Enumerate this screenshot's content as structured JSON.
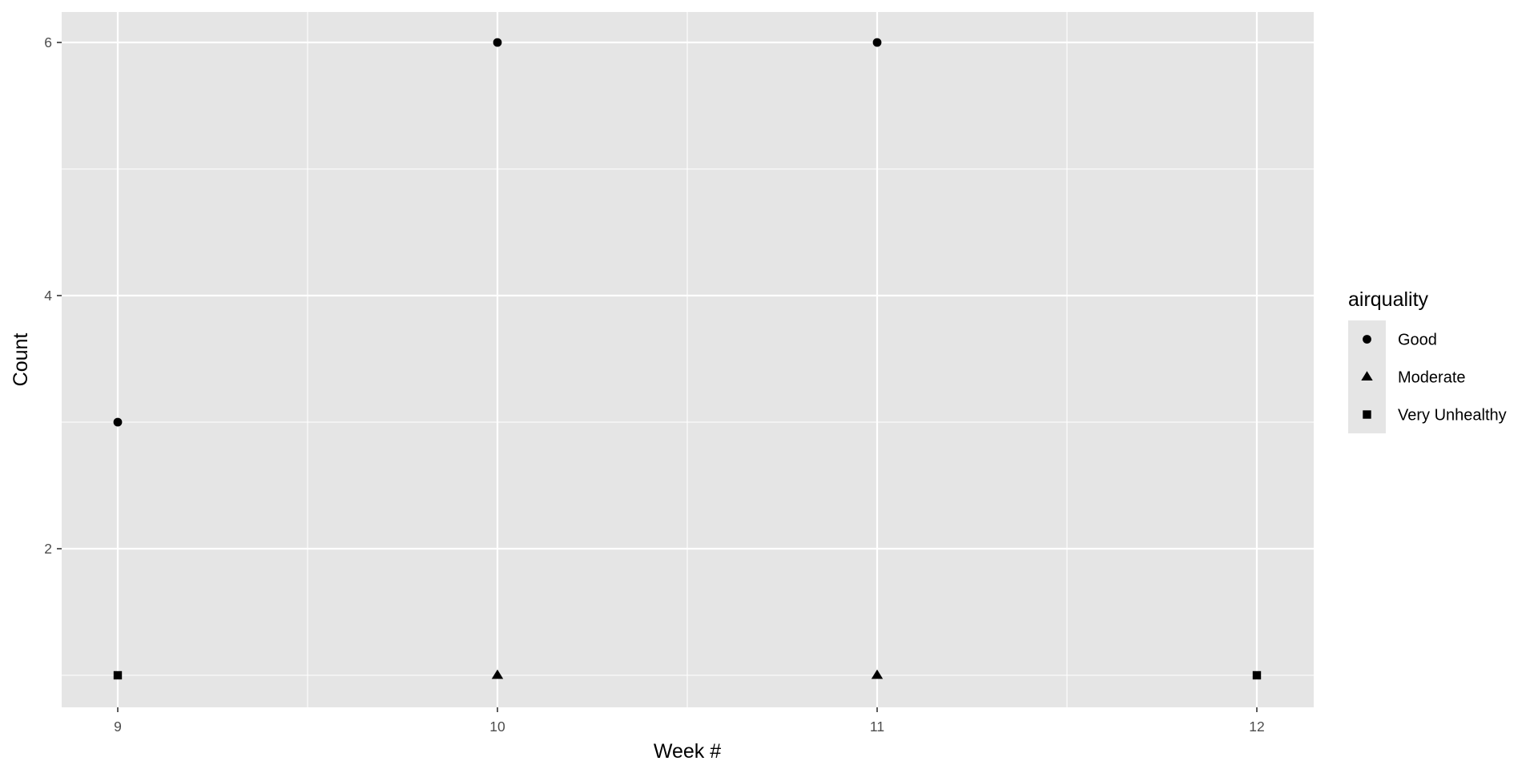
{
  "chart_data": {
    "type": "scatter",
    "title": "",
    "xlabel": "Week #",
    "ylabel": "Count",
    "xlim": [
      8.85,
      12.15
    ],
    "ylim": [
      0.75,
      6.25
    ],
    "x_ticks": [
      9,
      10,
      11,
      12
    ],
    "y_ticks": [
      2,
      4,
      6
    ],
    "grid": true,
    "legend": {
      "title": "airquality",
      "placement": "right"
    },
    "series": [
      {
        "name": "Good",
        "shape": "circle",
        "points": [
          {
            "x": 9,
            "y": 3
          },
          {
            "x": 10,
            "y": 6
          },
          {
            "x": 11,
            "y": 6
          }
        ]
      },
      {
        "name": "Moderate",
        "shape": "triangle",
        "points": [
          {
            "x": 10,
            "y": 1
          },
          {
            "x": 11,
            "y": 1
          }
        ]
      },
      {
        "name": "Very Unhealthy",
        "shape": "square",
        "points": [
          {
            "x": 9,
            "y": 1
          },
          {
            "x": 12,
            "y": 1
          }
        ]
      }
    ],
    "colors": {
      "panel": "#e5e5e5",
      "grid": "#ffffff",
      "point": "#000000",
      "tick": "#333333",
      "tick_label": "#4d4d4d"
    }
  }
}
